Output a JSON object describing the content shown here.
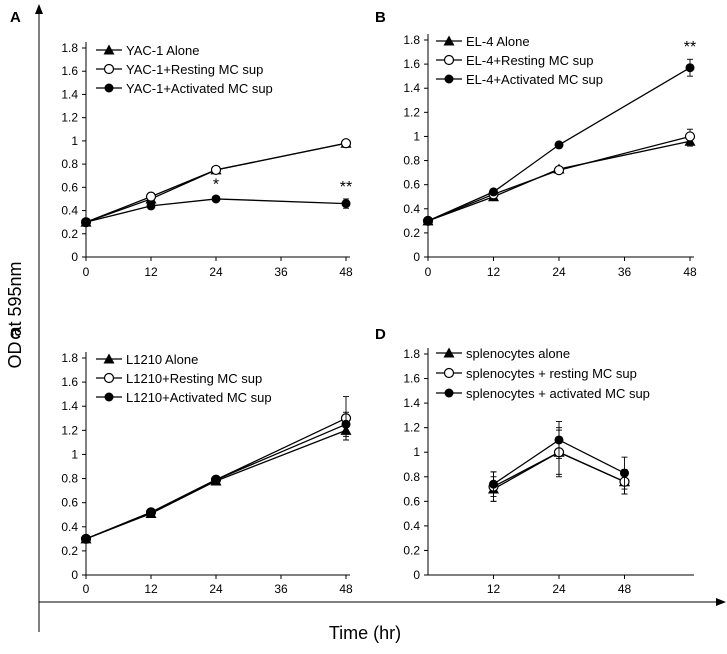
{
  "ylabel": "OD at 595nm",
  "xlabel": "Time (hr)",
  "chart_data": [
    {
      "panel": "A",
      "type": "line",
      "x_tick_labels": [
        "0",
        "12",
        "24",
        "36",
        "48"
      ],
      "xlim": [
        0,
        48
      ],
      "y_tick_labels": [
        "0",
        "0.2",
        "0.4",
        "0.6",
        "0.8",
        "1",
        "1.2",
        "1.4",
        "1.6",
        "1.8"
      ],
      "ylim": [
        0,
        1.8
      ],
      "series": [
        {
          "name": "YAC-1 Alone",
          "marker": "triangle",
          "x": [
            0,
            12,
            24,
            48
          ],
          "values": [
            0.3,
            0.5,
            0.75,
            0.98
          ],
          "err": [
            0.01,
            0.02,
            0.03,
            0.02
          ]
        },
        {
          "name": "YAC-1+Resting MC sup",
          "marker": "open-circle",
          "x": [
            0,
            12,
            24,
            48
          ],
          "values": [
            0.3,
            0.52,
            0.75,
            0.98
          ],
          "err": [
            0.01,
            0.02,
            0.03,
            0.02
          ]
        },
        {
          "name": "YAC-1+Activated MC sup",
          "marker": "filled-circle",
          "x": [
            0,
            12,
            24,
            48
          ],
          "values": [
            0.3,
            0.44,
            0.5,
            0.46
          ],
          "err": [
            0.01,
            0.02,
            0.02,
            0.04
          ]
        }
      ],
      "annotations": [
        {
          "text": "*",
          "x": 24,
          "y": 0.58
        },
        {
          "text": "**",
          "x": 48,
          "y": 0.56
        }
      ]
    },
    {
      "panel": "B",
      "type": "line",
      "x_tick_labels": [
        "0",
        "12",
        "24",
        "36",
        "48"
      ],
      "xlim": [
        0,
        48
      ],
      "y_tick_labels": [
        "0",
        "0.2",
        "0.4",
        "0.6",
        "0.8",
        "1",
        "1.2",
        "1.4",
        "1.6",
        "1.8"
      ],
      "ylim": [
        0,
        1.8
      ],
      "series": [
        {
          "name": "EL-4 Alone",
          "marker": "triangle",
          "x": [
            0,
            12,
            24,
            48
          ],
          "values": [
            0.3,
            0.5,
            0.73,
            0.96
          ],
          "err": [
            0.01,
            0.02,
            0.02,
            0.04
          ]
        },
        {
          "name": "EL-4+Resting MC sup",
          "marker": "open-circle",
          "x": [
            0,
            12,
            24,
            48
          ],
          "values": [
            0.3,
            0.52,
            0.72,
            1.0
          ],
          "err": [
            0.01,
            0.02,
            0.02,
            0.06
          ]
        },
        {
          "name": "EL-4+Activated MC sup",
          "marker": "filled-circle",
          "x": [
            0,
            12,
            24,
            48
          ],
          "values": [
            0.3,
            0.54,
            0.93,
            1.57
          ],
          "err": [
            0.01,
            0.02,
            0.02,
            0.07
          ]
        }
      ],
      "annotations": [
        {
          "text": "**",
          "x": 48,
          "y": 1.7
        }
      ]
    },
    {
      "panel": "C",
      "type": "line",
      "x_tick_labels": [
        "0",
        "12",
        "24",
        "36",
        "48"
      ],
      "xlim": [
        0,
        48
      ],
      "y_tick_labels": [
        "0",
        "0.2",
        "0.4",
        "0.6",
        "0.8",
        "1",
        "1.2",
        "1.4",
        "1.6",
        "1.8"
      ],
      "ylim": [
        0,
        1.8
      ],
      "series": [
        {
          "name": "L1210 Alone",
          "marker": "triangle",
          "x": [
            0,
            12,
            24,
            48
          ],
          "values": [
            0.3,
            0.51,
            0.78,
            1.2
          ],
          "err": [
            0.01,
            0.02,
            0.03,
            0.08
          ]
        },
        {
          "name": "L1210+Resting MC sup",
          "marker": "open-circle",
          "x": [
            0,
            12,
            24,
            48
          ],
          "values": [
            0.3,
            0.52,
            0.79,
            1.3
          ],
          "err": [
            0.01,
            0.02,
            0.03,
            0.18
          ]
        },
        {
          "name": "L1210+Activated MC sup",
          "marker": "filled-circle",
          "x": [
            0,
            12,
            24,
            48
          ],
          "values": [
            0.3,
            0.52,
            0.79,
            1.25
          ],
          "err": [
            0.01,
            0.02,
            0.03,
            0.1
          ]
        }
      ],
      "annotations": []
    },
    {
      "panel": "D",
      "type": "line",
      "x_tick_labels": [
        "12",
        "24",
        "48"
      ],
      "xlim": [
        0,
        4
      ],
      "x_positions": [
        1,
        2,
        3
      ],
      "y_tick_labels": [
        "0",
        "0.2",
        "0.4",
        "0.6",
        "0.8",
        "1",
        "1.2",
        "1.4",
        "1.6",
        "1.8"
      ],
      "ylim": [
        0,
        1.8
      ],
      "series": [
        {
          "name": "splenocytes alone",
          "marker": "triangle",
          "x": [
            1,
            2,
            3
          ],
          "values": [
            0.7,
            1.0,
            0.76
          ],
          "err": [
            0.1,
            0.2,
            0.1
          ]
        },
        {
          "name": "splenocytes + resting MC sup",
          "marker": "open-circle",
          "x": [
            1,
            2,
            3
          ],
          "values": [
            0.72,
            1.0,
            0.76
          ],
          "err": [
            0.12,
            0.18,
            0.1
          ]
        },
        {
          "name": "splenocytes + activated MC sup",
          "marker": "filled-circle",
          "x": [
            1,
            2,
            3
          ],
          "values": [
            0.74,
            1.1,
            0.83
          ],
          "err": [
            0.1,
            0.15,
            0.13
          ]
        }
      ],
      "annotations": []
    }
  ]
}
